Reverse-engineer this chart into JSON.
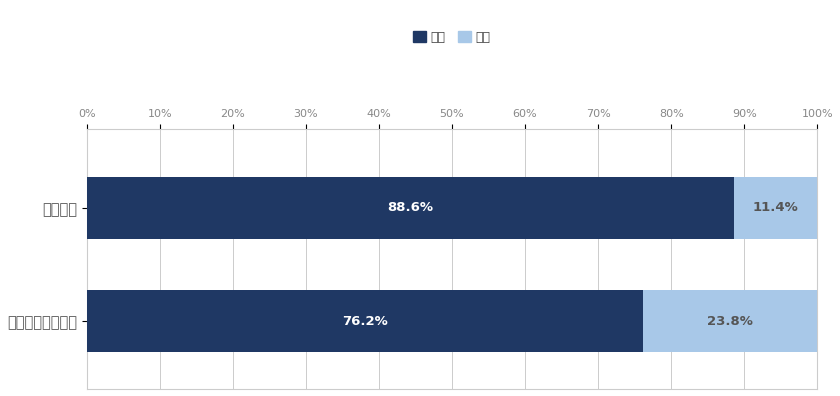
{
  "categories": [
    "エン転職",
    "その他の採用手法"
  ],
  "active_pct": [
    88.6,
    76.2
  ],
  "resigned_pct": [
    11.4,
    23.8
  ],
  "active_label": [
    "88.6%",
    "76.2%"
  ],
  "resigned_label": [
    "11.4%",
    "23.8%"
  ],
  "color_active": "#1f3864",
  "color_resigned": "#a8c8e8",
  "legend_active": "在籍",
  "legend_resigned": "退職",
  "xlim": [
    0,
    100
  ],
  "xticks": [
    0,
    10,
    20,
    30,
    40,
    50,
    60,
    70,
    80,
    90,
    100
  ],
  "bar_height": 0.55,
  "background_color": "#ffffff",
  "grid_color": "#cccccc",
  "text_color_active": "#ffffff",
  "text_color_resigned": "#555555",
  "label_fontsize": 9.5,
  "tick_fontsize": 8,
  "ytick_fontsize": 10.5
}
